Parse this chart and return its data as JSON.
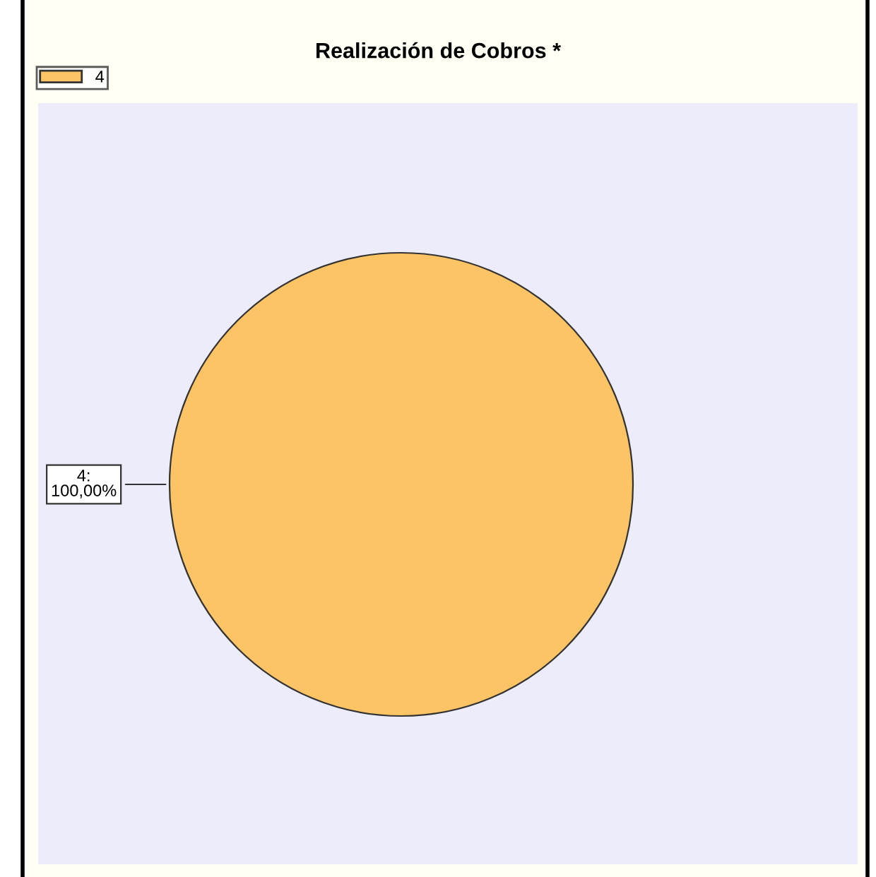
{
  "chart_data": {
    "type": "pie",
    "title": "Realización de Cobros *",
    "categories": [
      "4"
    ],
    "values": [
      100
    ],
    "colors": [
      "#fdc465"
    ],
    "value_labels": [
      "4:\n100,00%"
    ],
    "legend": "top left"
  }
}
